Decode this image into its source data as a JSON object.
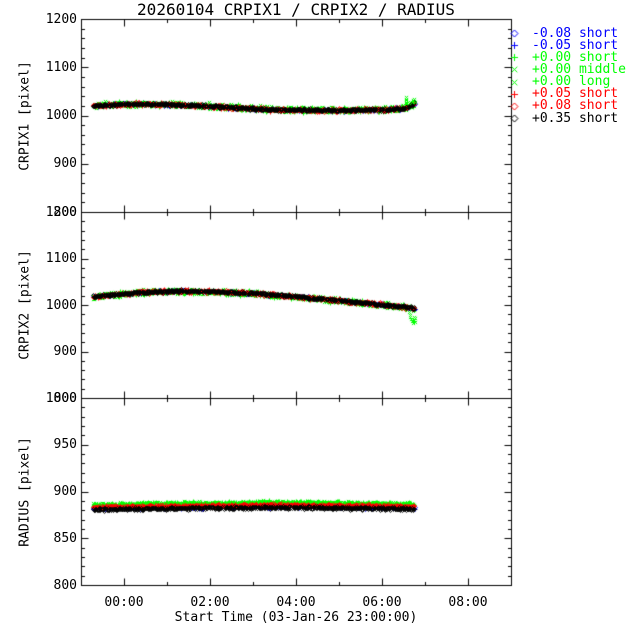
{
  "page": {
    "background": "#FFFFFF",
    "axis_color": "#000000"
  },
  "chart_data": {
    "type": "scatter",
    "title": "20260104 CRPIX1 / CRPIX2 / RADIUS",
    "xlabel": "Start Time (03-Jan-26 23:00:00)",
    "grid": false,
    "legend_position": "outside-top-right",
    "xlim_hours": [
      -1,
      9
    ],
    "x_major_ticks": [
      {
        "t": 0,
        "label": "00:00"
      },
      {
        "t": 2,
        "label": "02:00"
      },
      {
        "t": 4,
        "label": "04:00"
      },
      {
        "t": 6,
        "label": "06:00"
      },
      {
        "t": 8,
        "label": "08:00"
      }
    ],
    "x_minor_step_hours": 1,
    "data_time_span_hours": [
      -0.72,
      6.76
    ],
    "series": [
      {
        "id": "m0_08_short",
        "label": "-0.08 short",
        "color": "#0000FF",
        "group": "blue",
        "symbol": "diamond",
        "step": 0.055
      },
      {
        "id": "m0_05_short",
        "label": "-0.05 short",
        "color": "#0000FF",
        "group": "blue",
        "symbol": "plus",
        "step": 0.055
      },
      {
        "id": "p0_00_short",
        "label": "+0.00 short",
        "color": "#00FF00",
        "group": "green",
        "symbol": "plus",
        "step": 0.018
      },
      {
        "id": "p0_00_middle",
        "label": "+0.00 middle",
        "color": "#00FF00",
        "group": "green",
        "symbol": "x",
        "step": 0.026
      },
      {
        "id": "p0_00_long",
        "label": "+0.00 long",
        "color": "#00FF00",
        "group": "green",
        "symbol": "x",
        "step": 0.026
      },
      {
        "id": "p0_05_short",
        "label": "+0.05 short",
        "color": "#FF0000",
        "group": "red",
        "symbol": "plus",
        "step": 0.022
      },
      {
        "id": "p0_08_short",
        "label": "+0.08 short",
        "color": "#FF0000",
        "group": "red",
        "symbol": "diamond",
        "step": 0.026
      },
      {
        "id": "p0_35_short",
        "label": "+0.35 short",
        "color": "#000000",
        "group": "black",
        "symbol": "diamond",
        "step": 0.013
      }
    ],
    "panels": [
      {
        "ylabel": "CRPIX1 [pixel]",
        "ylim": [
          800,
          1200
        ],
        "y_major_ticks": [
          800,
          900,
          1000,
          1100,
          1200
        ],
        "y_minor_step": 20,
        "trend": [
          [
            -0.72,
            1020.5
          ],
          [
            -0.5,
            1022
          ],
          [
            0,
            1023.5
          ],
          [
            0.4,
            1024
          ],
          [
            0.8,
            1023.5
          ],
          [
            1.2,
            1022.5
          ],
          [
            1.6,
            1021
          ],
          [
            2,
            1019.5
          ],
          [
            2.5,
            1017
          ],
          [
            3,
            1014.5
          ],
          [
            3.5,
            1012.8
          ],
          [
            4,
            1011.8
          ],
          [
            4.5,
            1011.3
          ],
          [
            5,
            1011.3
          ],
          [
            5.5,
            1011.8
          ],
          [
            6,
            1012.5
          ],
          [
            6.3,
            1013.5
          ],
          [
            6.5,
            1015.5
          ],
          [
            6.6,
            1018.5
          ],
          [
            6.68,
            1022.5
          ],
          [
            6.76,
            1025.5
          ]
        ],
        "groups": {
          "blue": {
            "offset": 0,
            "sigma": 1.5
          },
          "green": {
            "offset": 0.5,
            "sigma": 2.6
          },
          "red": {
            "offset": 0,
            "sigma": 1.8
          },
          "black": {
            "offset": 0,
            "sigma": 1.4
          }
        },
        "extra_points": [
          {
            "series": "p0_00_long",
            "points": [
              [
                6.555,
                1026
              ],
              [
                6.555,
                1029
              ],
              [
                6.555,
                1032
              ],
              [
                6.555,
                1035
              ],
              [
                6.555,
                1038
              ],
              [
                6.6,
                1027
              ],
              [
                6.63,
                1025
              ],
              [
                6.7,
                1029
              ],
              [
                6.72,
                1032
              ],
              [
                6.74,
                1034
              ],
              [
                6.755,
                1030
              ],
              [
                6.76,
                1027
              ]
            ]
          }
        ]
      },
      {
        "ylabel": "CRPIX2 [pixel]",
        "ylim": [
          800,
          1200
        ],
        "y_major_ticks": [
          800,
          900,
          1000,
          1100,
          1200
        ],
        "y_minor_step": 20,
        "trend": [
          [
            -0.72,
            1018
          ],
          [
            -0.4,
            1021.5
          ],
          [
            0,
            1025
          ],
          [
            0.5,
            1028
          ],
          [
            1,
            1030
          ],
          [
            1.5,
            1030.3
          ],
          [
            2,
            1029.5
          ],
          [
            2.5,
            1027.8
          ],
          [
            3,
            1025.3
          ],
          [
            3.5,
            1022
          ],
          [
            4,
            1018.3
          ],
          [
            4.5,
            1014.3
          ],
          [
            5,
            1010
          ],
          [
            5.5,
            1005.5
          ],
          [
            6,
            1001
          ],
          [
            6.3,
            998.3
          ],
          [
            6.5,
            996.5
          ],
          [
            6.65,
            995
          ],
          [
            6.76,
            992
          ]
        ],
        "groups": {
          "blue": {
            "offset": 0,
            "sigma": 1.5
          },
          "green": {
            "offset": -0.5,
            "sigma": 2.6
          },
          "red": {
            "offset": 0,
            "sigma": 1.8
          },
          "black": {
            "offset": 0,
            "sigma": 1.4
          }
        },
        "extra_points": [
          {
            "series": "p0_00_long",
            "points": [
              [
                6.62,
                984
              ],
              [
                6.64,
                979
              ],
              [
                6.66,
                974
              ],
              [
                6.68,
                969
              ],
              [
                6.7,
                965
              ],
              [
                6.72,
                962
              ],
              [
                6.74,
                968
              ],
              [
                6.74,
                975
              ],
              [
                6.76,
                971
              ],
              [
                6.76,
                963
              ]
            ]
          }
        ]
      },
      {
        "ylabel": "RADIUS [pixel]",
        "ylim": [
          800,
          1000
        ],
        "y_major_ticks": [
          800,
          850,
          900,
          950,
          1000
        ],
        "y_minor_step": 10,
        "trend": [
          [
            -0.72,
            880.8
          ],
          [
            0,
            881.5
          ],
          [
            1,
            882
          ],
          [
            2,
            882.5
          ],
          [
            3,
            883
          ],
          [
            3.5,
            883.2
          ],
          [
            4,
            883
          ],
          [
            4.5,
            882.8
          ],
          [
            5,
            882.5
          ],
          [
            5.5,
            882.3
          ],
          [
            6,
            882
          ],
          [
            6.5,
            881.8
          ],
          [
            6.76,
            881.5
          ]
        ],
        "groups": {
          "blue": {
            "offset": 1.2,
            "sigma": 0.9
          },
          "green": {
            "offset": 5.0,
            "sigma": 1.0
          },
          "red": {
            "offset": 2.6,
            "sigma": 0.8
          },
          "black": {
            "offset": 0,
            "sigma": 0.8
          }
        },
        "extra_points": []
      }
    ]
  }
}
